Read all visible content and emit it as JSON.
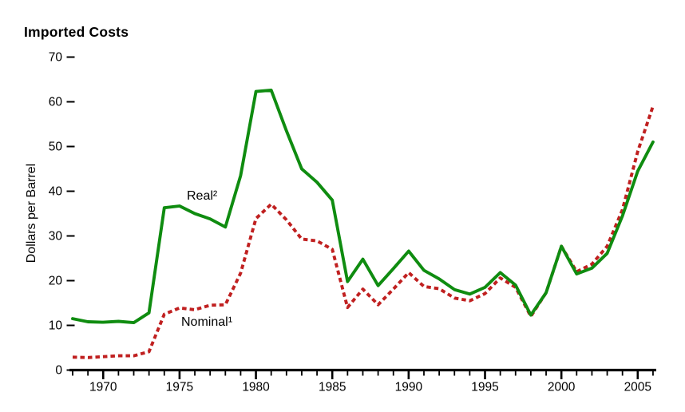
{
  "page": {
    "background_color": "#ffffff"
  },
  "chart_data": {
    "type": "line",
    "title": "Imported Costs",
    "xlabel": "",
    "ylabel": "Dollars per Barrel",
    "xlim": [
      1968,
      2006
    ],
    "ylim": [
      0,
      70
    ],
    "yticks": [
      0,
      10,
      20,
      30,
      40,
      50,
      60,
      70
    ],
    "xtick_labeled_years": [
      1970,
      1975,
      1980,
      1985,
      1990,
      1995,
      2000,
      2005
    ],
    "xtick_minor_every_year": true,
    "grid": false,
    "legend_position": "inline-labels",
    "axis_color": "#000000",
    "x": [
      1968,
      1969,
      1970,
      1971,
      1972,
      1973,
      1974,
      1975,
      1976,
      1977,
      1978,
      1979,
      1980,
      1981,
      1982,
      1983,
      1984,
      1985,
      1986,
      1987,
      1988,
      1989,
      1990,
      1991,
      1992,
      1993,
      1994,
      1995,
      1996,
      1997,
      1998,
      1999,
      2000,
      2001,
      2002,
      2003,
      2004,
      2005,
      2006
    ],
    "series": [
      {
        "name": "Nominal",
        "label": "Nominal¹",
        "color": "#c02020",
        "line_style": "dashed",
        "values": [
          2.9,
          2.8,
          3.0,
          3.2,
          3.2,
          4.1,
          12.5,
          13.9,
          13.5,
          14.5,
          14.6,
          21.7,
          33.9,
          37.1,
          33.6,
          29.3,
          28.9,
          27.0,
          14.0,
          18.1,
          14.6,
          18.1,
          21.8,
          18.7,
          18.2,
          16.1,
          15.5,
          17.1,
          20.6,
          18.5,
          12.0,
          17.3,
          27.7,
          22.0,
          23.7,
          27.7,
          35.9,
          48.9,
          59.0
        ]
      },
      {
        "name": "Real",
        "label": "Real²",
        "color": "#0f8c10",
        "line_style": "solid",
        "values": [
          11.5,
          10.8,
          10.7,
          10.9,
          10.6,
          12.8,
          36.3,
          36.7,
          35.0,
          33.8,
          32.0,
          43.5,
          62.3,
          62.6,
          53.5,
          45.0,
          42.0,
          38.0,
          19.8,
          24.8,
          18.9,
          22.7,
          26.6,
          22.3,
          20.4,
          18.0,
          17.0,
          18.5,
          21.8,
          19.0,
          12.3,
          17.3,
          27.7,
          21.5,
          22.8,
          26.1,
          34.5,
          44.5,
          51.0
        ]
      }
    ]
  }
}
